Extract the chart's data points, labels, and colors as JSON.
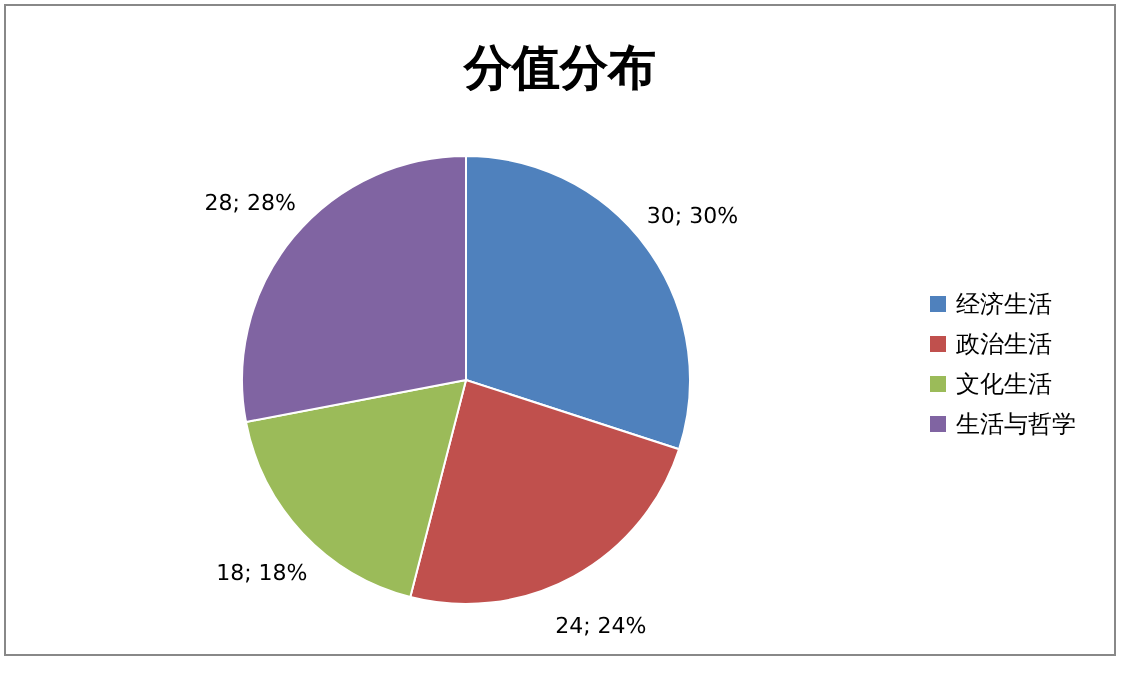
{
  "chart_data": {
    "type": "pie",
    "title": "分值分布",
    "categories": [
      "经济生活",
      "政治生活",
      "文化生活",
      "生活与哲学"
    ],
    "values": [
      30,
      24,
      18,
      28
    ],
    "colors": [
      "#4f81bd",
      "#c0504d",
      "#9bbb59",
      "#8064a2"
    ],
    "value_labels": [
      "30; 30%",
      "24; 24%",
      "18; 18%",
      "28; 28%"
    ],
    "legend": "right"
  }
}
